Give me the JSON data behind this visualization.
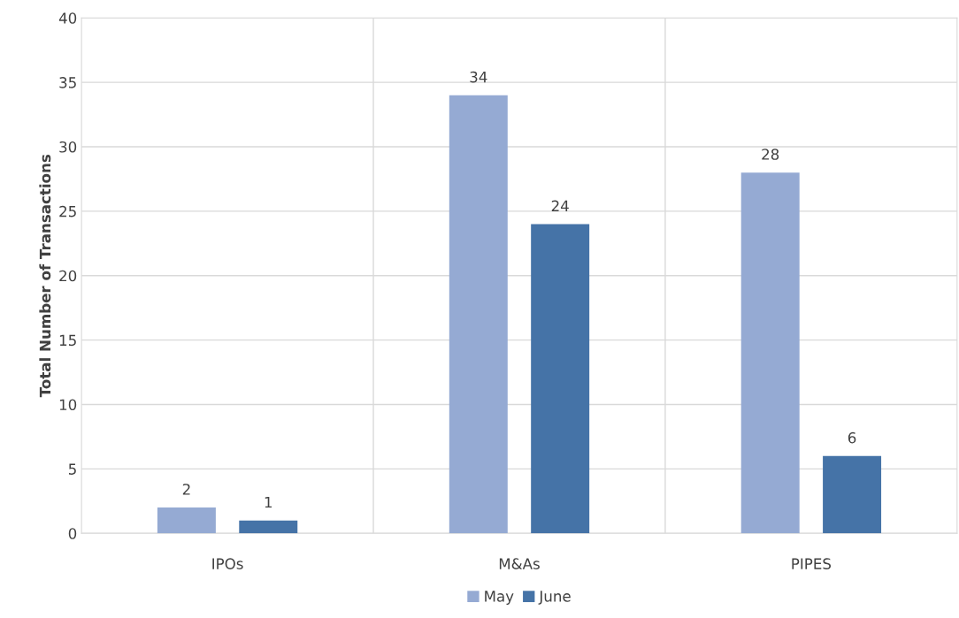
{
  "chart_data": {
    "type": "bar",
    "ylabel": "Total Number of Transactions",
    "categories": [
      "IPOs",
      "M&As",
      "PIPES"
    ],
    "series": [
      {
        "name": "May",
        "color": "#95aad3",
        "values": [
          2,
          34,
          28
        ]
      },
      {
        "name": "June",
        "color": "#4573a7",
        "values": [
          1,
          24,
          6
        ]
      }
    ],
    "ylim": [
      0,
      40
    ],
    "yticks": [
      0,
      5,
      10,
      15,
      20,
      25,
      30,
      35,
      40
    ],
    "grid": true,
    "legend": "bottom",
    "data_labels": true
  }
}
